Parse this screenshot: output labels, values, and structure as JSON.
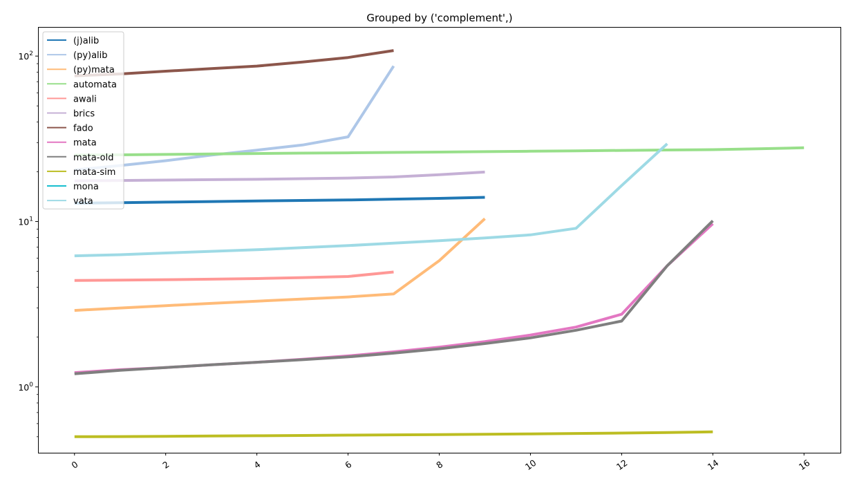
{
  "chart_data": {
    "type": "line",
    "title": "Grouped by ('complement',)",
    "xlabel": "",
    "ylabel": "",
    "xlim": [
      -0.8,
      16.8
    ],
    "ylim": [
      0.4,
      150
    ],
    "yscale": "log",
    "grid": false,
    "legend_position": "top-left",
    "x_ticks": [
      0,
      2,
      4,
      6,
      8,
      10,
      12,
      14,
      16
    ],
    "x_tick_labels": [
      "0",
      "2",
      "4",
      "6",
      "8",
      "10",
      "12",
      "14",
      "16"
    ],
    "y_ticks": [
      1,
      10,
      100
    ],
    "y_tick_labels": [
      {
        "base": "10",
        "exp": "0"
      },
      {
        "base": "10",
        "exp": "1"
      },
      {
        "base": "10",
        "exp": "2"
      }
    ],
    "series": [
      {
        "name": "(j)alib",
        "color": "#1f77b4",
        "x": [
          0,
          1,
          2,
          3,
          4,
          5,
          6,
          7,
          8,
          9
        ],
        "y": [
          12.9,
          13.0,
          13.1,
          13.2,
          13.3,
          13.4,
          13.5,
          13.65,
          13.8,
          14.0
        ]
      },
      {
        "name": "(py)alib",
        "color": "#aec7e8",
        "x": [
          0,
          1,
          2,
          3,
          4,
          5,
          6,
          7
        ],
        "y": [
          20.5,
          21.8,
          23.3,
          25.2,
          27.0,
          29.0,
          32.5,
          87
        ]
      },
      {
        "name": "(py)mata",
        "color": "#ffbb78",
        "x": [
          0,
          1,
          2,
          3,
          4,
          5,
          6,
          7,
          8,
          9
        ],
        "y": [
          2.9,
          3.0,
          3.1,
          3.2,
          3.3,
          3.4,
          3.5,
          3.65,
          5.8,
          10.4
        ]
      },
      {
        "name": "automata",
        "color": "#98df8a",
        "x": [
          0,
          1,
          2,
          3,
          4,
          5,
          6,
          7,
          8,
          9,
          10,
          11,
          12,
          13,
          14,
          15,
          16
        ],
        "y": [
          25.2,
          25.3,
          25.45,
          25.6,
          25.75,
          25.9,
          26.0,
          26.15,
          26.3,
          26.45,
          26.6,
          26.75,
          26.9,
          27.05,
          27.2,
          27.5,
          27.9
        ]
      },
      {
        "name": "awali",
        "color": "#ff9896",
        "x": [
          0,
          1,
          2,
          3,
          4,
          5,
          6,
          7
        ],
        "y": [
          4.4,
          4.42,
          4.45,
          4.48,
          4.52,
          4.58,
          4.65,
          4.95
        ]
      },
      {
        "name": "brics",
        "color": "#c5b0d5",
        "x": [
          0,
          1,
          2,
          3,
          4,
          5,
          6,
          7,
          8,
          9
        ],
        "y": [
          17.6,
          17.7,
          17.8,
          17.9,
          18.0,
          18.15,
          18.3,
          18.6,
          19.2,
          19.9
        ]
      },
      {
        "name": "fado",
        "color": "#8c564b",
        "x": [
          0,
          1,
          2,
          3,
          4,
          5,
          6,
          7
        ],
        "y": [
          76,
          78,
          81,
          84,
          87,
          92,
          98,
          108
        ]
      },
      {
        "name": "mata",
        "color": "#e377c2",
        "x": [
          0,
          1,
          2,
          3,
          4,
          5,
          6,
          7,
          8,
          9,
          10,
          11,
          12,
          13,
          14
        ],
        "y": [
          1.22,
          1.27,
          1.31,
          1.36,
          1.41,
          1.47,
          1.54,
          1.63,
          1.74,
          1.88,
          2.06,
          2.3,
          2.75,
          5.4,
          9.7
        ]
      },
      {
        "name": "mata-old",
        "color": "#7f7f7f",
        "x": [
          0,
          1,
          2,
          3,
          4,
          5,
          6,
          7,
          8,
          9,
          10,
          11,
          12,
          13,
          14
        ],
        "y": [
          1.2,
          1.26,
          1.31,
          1.36,
          1.41,
          1.46,
          1.52,
          1.6,
          1.7,
          1.83,
          1.98,
          2.2,
          2.5,
          5.4,
          10.1
        ]
      },
      {
        "name": "mata-sim",
        "color": "#bcbd22",
        "x": [
          0,
          1,
          2,
          3,
          4,
          5,
          6,
          7,
          8,
          9,
          10,
          11,
          12,
          13,
          14
        ],
        "y": [
          0.5,
          0.501,
          0.503,
          0.505,
          0.507,
          0.509,
          0.511,
          0.513,
          0.515,
          0.517,
          0.52,
          0.523,
          0.526,
          0.53,
          0.535
        ]
      },
      {
        "name": "mona",
        "color": "#17becf",
        "x": [],
        "y": []
      },
      {
        "name": "vata",
        "color": "#9edae5",
        "x": [
          0,
          1,
          2,
          3,
          4,
          5,
          6,
          7,
          8,
          9,
          10,
          11,
          12,
          13
        ],
        "y": [
          6.2,
          6.3,
          6.45,
          6.6,
          6.75,
          6.95,
          7.15,
          7.4,
          7.65,
          7.95,
          8.3,
          9.1,
          16.5,
          29.5
        ]
      }
    ]
  }
}
